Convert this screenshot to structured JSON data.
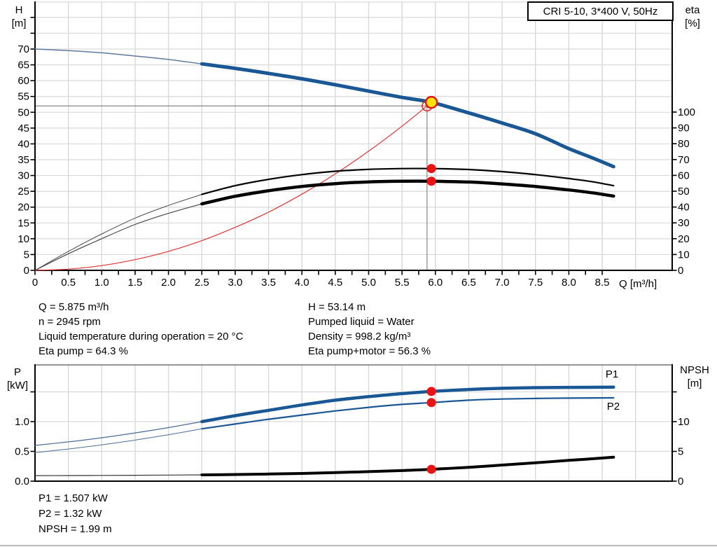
{
  "title_box": {
    "text": "CRI 5-10, 3*400 V, 50Hz"
  },
  "info_blocks": {
    "left": [
      "Q = 5.875 m³/h",
      "n = 2945 rpm",
      "Liquid temperature during operation = 20 °C",
      "Eta pump = 64.3 %"
    ],
    "right": [
      "H = 53.14 m",
      "Pumped liquid = Water",
      "Density = 998.2 kg/m³",
      "Eta pump+motor = 56.3 %"
    ],
    "bottom": [
      "P1 = 1.507 kW",
      "P2 = 1.32 kW",
      "NPSH = 1.99 m"
    ]
  },
  "colors": {
    "curve_blue": "#1a5795",
    "curve_blue_thin": "#5f7a9b",
    "curve_black": "#000000",
    "curve_black_thin": "#4a4a4a",
    "curve_red": "#e03434",
    "grid": "#d9d9d9",
    "lower_top_border": "#555555",
    "axis": "#000000",
    "duty_line": "#858585",
    "marker_red": "#ee1111",
    "marker_yellow": "#ffe400",
    "label_blue": "#1a5795"
  },
  "chart_data": [
    {
      "id": "head-efficiency-chart",
      "type": "line",
      "title": "CRI 5-10, 3*400 V, 50Hz",
      "x": {
        "label": "Q [m³/h]",
        "min": 0,
        "max": 9.55,
        "tick_labels": [
          "0",
          "0.5",
          "1.0",
          "1.5",
          "2.0",
          "2.5",
          "3.0",
          "3.5",
          "4.0",
          "4.5",
          "5.0",
          "5.5",
          "6.0",
          "6.5",
          "7.0",
          "7.5",
          "8.0",
          "8.5"
        ],
        "minor_tick_step": 0.25,
        "grid_step": 0.5,
        "grid_max": 9.0
      },
      "y_left": {
        "label_lines": [
          "H",
          "[m]"
        ],
        "min": 0,
        "max": 85,
        "tick_step": 5,
        "tick_max": 80,
        "grid_max": 80,
        "tick_labels": [
          "0",
          "5",
          "10",
          "15",
          "20",
          "25",
          "30",
          "35",
          "40",
          "45",
          "50",
          "55",
          "60",
          "65",
          "70"
        ]
      },
      "y_right": {
        "label_lines": [
          "eta",
          "[%]"
        ],
        "min": 0,
        "max": 100,
        "tick_step": 10,
        "tick_max": 100,
        "tick_labels": [
          "0",
          "10",
          "20",
          "30",
          "40",
          "50",
          "60",
          "70",
          "80",
          "90",
          "100"
        ]
      },
      "series": [
        {
          "name": "system-curve",
          "axis": "left",
          "color": "#e03434",
          "color_thin": "#e03434",
          "width_thin": 1.2,
          "width_thick": 1.2,
          "split_q": null,
          "points": [
            [
              0,
              0
            ],
            [
              0.5,
              0.4
            ],
            [
              1,
              1.5
            ],
            [
              1.5,
              3.4
            ],
            [
              2,
              6.0
            ],
            [
              2.5,
              9.4
            ],
            [
              3,
              13.6
            ],
            [
              3.5,
              18.4
            ],
            [
              4,
              24.1
            ],
            [
              4.5,
              30.5
            ],
            [
              5,
              37.7
            ],
            [
              5.5,
              45.6
            ],
            [
              5.94,
              53.14
            ]
          ]
        },
        {
          "name": "eta-pump",
          "axis": "right",
          "color": "#000000",
          "color_thin": "#4a4a4a",
          "width_thin": 1,
          "width_thick": 2.2,
          "split_q": 2.5,
          "points": [
            [
              0,
              0
            ],
            [
              0.5,
              12
            ],
            [
              1,
              23
            ],
            [
              1.5,
              33
            ],
            [
              2,
              41
            ],
            [
              2.5,
              48
            ],
            [
              3,
              53.5
            ],
            [
              3.5,
              57.5
            ],
            [
              4,
              60.5
            ],
            [
              4.5,
              62.6
            ],
            [
              5,
              63.8
            ],
            [
              5.5,
              64.3
            ],
            [
              5.94,
              64.3
            ],
            [
              6.5,
              63.7
            ],
            [
              7,
              62.4
            ],
            [
              7.5,
              60.5
            ],
            [
              8,
              58
            ],
            [
              8.35,
              56
            ],
            [
              8.67,
              53.5
            ]
          ]
        },
        {
          "name": "eta-pump-motor",
          "axis": "right",
          "color": "#000000",
          "color_thin": "#4a4a4a",
          "width_thin": 1.2,
          "width_thick": 4.5,
          "split_q": 2.5,
          "points": [
            [
              0,
              0
            ],
            [
              0.5,
              10.5
            ],
            [
              1,
              20
            ],
            [
              1.5,
              29
            ],
            [
              2,
              36
            ],
            [
              2.5,
              42
            ],
            [
              3,
              46.8
            ],
            [
              3.5,
              50.3
            ],
            [
              4,
              53
            ],
            [
              4.5,
              54.8
            ],
            [
              5,
              55.9
            ],
            [
              5.5,
              56.3
            ],
            [
              5.94,
              56.3
            ],
            [
              6.5,
              55.8
            ],
            [
              7,
              54.6
            ],
            [
              7.5,
              53
            ],
            [
              8,
              50.8
            ],
            [
              8.35,
              49
            ],
            [
              8.67,
              46.9
            ]
          ]
        },
        {
          "name": "pump-head-curve",
          "axis": "left",
          "color": "#1a5795",
          "color_thin": "#5f7a9b",
          "width_thin": 1.5,
          "width_thick": 5,
          "split_q": 2.5,
          "points": [
            [
              0,
              70
            ],
            [
              0.5,
              69.5
            ],
            [
              1,
              68.8
            ],
            [
              1.5,
              67.8
            ],
            [
              2,
              66.7
            ],
            [
              2.5,
              65.3
            ],
            [
              3,
              63.9
            ],
            [
              3.5,
              62.3
            ],
            [
              4,
              60.6
            ],
            [
              4.5,
              58.7
            ],
            [
              5,
              56.7
            ],
            [
              5.5,
              54.7
            ],
            [
              5.94,
              53.14
            ],
            [
              6.5,
              49.8
            ],
            [
              7,
              46.6
            ],
            [
              7.5,
              43.2
            ],
            [
              8,
              38.5
            ],
            [
              8.35,
              35.6
            ],
            [
              8.67,
              32.8
            ]
          ]
        }
      ],
      "duty": {
        "requested": {
          "q": 5.875,
          "h": 52.0
        },
        "actual": {
          "q": 5.94,
          "h": 53.14
        }
      },
      "markers": [
        {
          "series": "eta-pump",
          "q": 5.94,
          "value": 64.3
        },
        {
          "series": "eta-pump-motor",
          "q": 5.94,
          "value": 56.3
        }
      ]
    },
    {
      "id": "power-npsh-chart",
      "type": "line",
      "x": {
        "min": 0,
        "max": 9.55,
        "grid_step": 0.5,
        "grid_max": 9.0
      },
      "y_left": {
        "label_lines": [
          "P",
          "[kW]"
        ],
        "min": 0,
        "max": 1.95,
        "tick_step": 0.5,
        "tick_max": 1.5,
        "grid_max": 1.5,
        "tick_labels": [
          "0.0",
          "0.5",
          "1.0"
        ]
      },
      "y_right": {
        "label_lines": [
          "NPSH",
          "[m]"
        ],
        "min": 0,
        "max": 19.5,
        "tick_step": 5,
        "tick_max": 15,
        "tick_labels": [
          "0",
          "5",
          "10"
        ]
      },
      "series": [
        {
          "name": "P1",
          "axis": "left",
          "color": "#1a5795",
          "color_thin": "#4a6d96",
          "width_thin": 1.2,
          "width_thick": 4.5,
          "split_q": 2.5,
          "points": [
            [
              0,
              0.6
            ],
            [
              0.5,
              0.66
            ],
            [
              1,
              0.73
            ],
            [
              1.5,
              0.81
            ],
            [
              2,
              0.9
            ],
            [
              2.5,
              1.0
            ],
            [
              3,
              1.1
            ],
            [
              3.5,
              1.19
            ],
            [
              4,
              1.28
            ],
            [
              4.5,
              1.36
            ],
            [
              5,
              1.42
            ],
            [
              5.5,
              1.47
            ],
            [
              5.94,
              1.507
            ],
            [
              6.5,
              1.54
            ],
            [
              7,
              1.56
            ],
            [
              7.5,
              1.57
            ],
            [
              8,
              1.575
            ],
            [
              8.67,
              1.58
            ]
          ]
        },
        {
          "name": "P2",
          "axis": "left",
          "color": "#1a5795",
          "color_thin": "#4a6d96",
          "width_thin": 1,
          "width_thick": 2.2,
          "split_q": 2.5,
          "points": [
            [
              0,
              0.48
            ],
            [
              0.5,
              0.54
            ],
            [
              1,
              0.61
            ],
            [
              1.5,
              0.69
            ],
            [
              2,
              0.78
            ],
            [
              2.5,
              0.88
            ],
            [
              3,
              0.96
            ],
            [
              3.5,
              1.04
            ],
            [
              4,
              1.11
            ],
            [
              4.5,
              1.18
            ],
            [
              5,
              1.24
            ],
            [
              5.5,
              1.29
            ],
            [
              5.94,
              1.32
            ],
            [
              6.5,
              1.36
            ],
            [
              7,
              1.38
            ],
            [
              7.5,
              1.39
            ],
            [
              8,
              1.395
            ],
            [
              8.67,
              1.4
            ]
          ]
        },
        {
          "name": "NPSH",
          "axis": "right",
          "color": "#000000",
          "color_thin": "#333333",
          "width_thin": 1.2,
          "width_thick": 4,
          "split_q": 2.5,
          "points": [
            [
              0,
              0.93
            ],
            [
              0.5,
              0.94
            ],
            [
              1,
              0.96
            ],
            [
              1.5,
              0.99
            ],
            [
              2,
              1.02
            ],
            [
              2.5,
              1.06
            ],
            [
              3,
              1.12
            ],
            [
              3.5,
              1.2
            ],
            [
              4,
              1.3
            ],
            [
              4.5,
              1.43
            ],
            [
              5,
              1.6
            ],
            [
              5.5,
              1.78
            ],
            [
              5.94,
              1.99
            ],
            [
              6.5,
              2.33
            ],
            [
              7,
              2.7
            ],
            [
              7.5,
              3.08
            ],
            [
              8,
              3.5
            ],
            [
              8.35,
              3.76
            ],
            [
              8.67,
              4.02
            ]
          ]
        }
      ],
      "series_labels": [
        {
          "text": "P1",
          "q": 8.55,
          "value": 1.8
        },
        {
          "text": "P2",
          "q": 8.57,
          "value": 1.26
        }
      ],
      "markers": [
        {
          "series": "P1",
          "q": 5.94,
          "value": 1.507
        },
        {
          "series": "P2",
          "q": 5.94,
          "value": 1.32
        },
        {
          "series": "NPSH",
          "q": 5.94,
          "value": 1.99
        }
      ]
    }
  ]
}
